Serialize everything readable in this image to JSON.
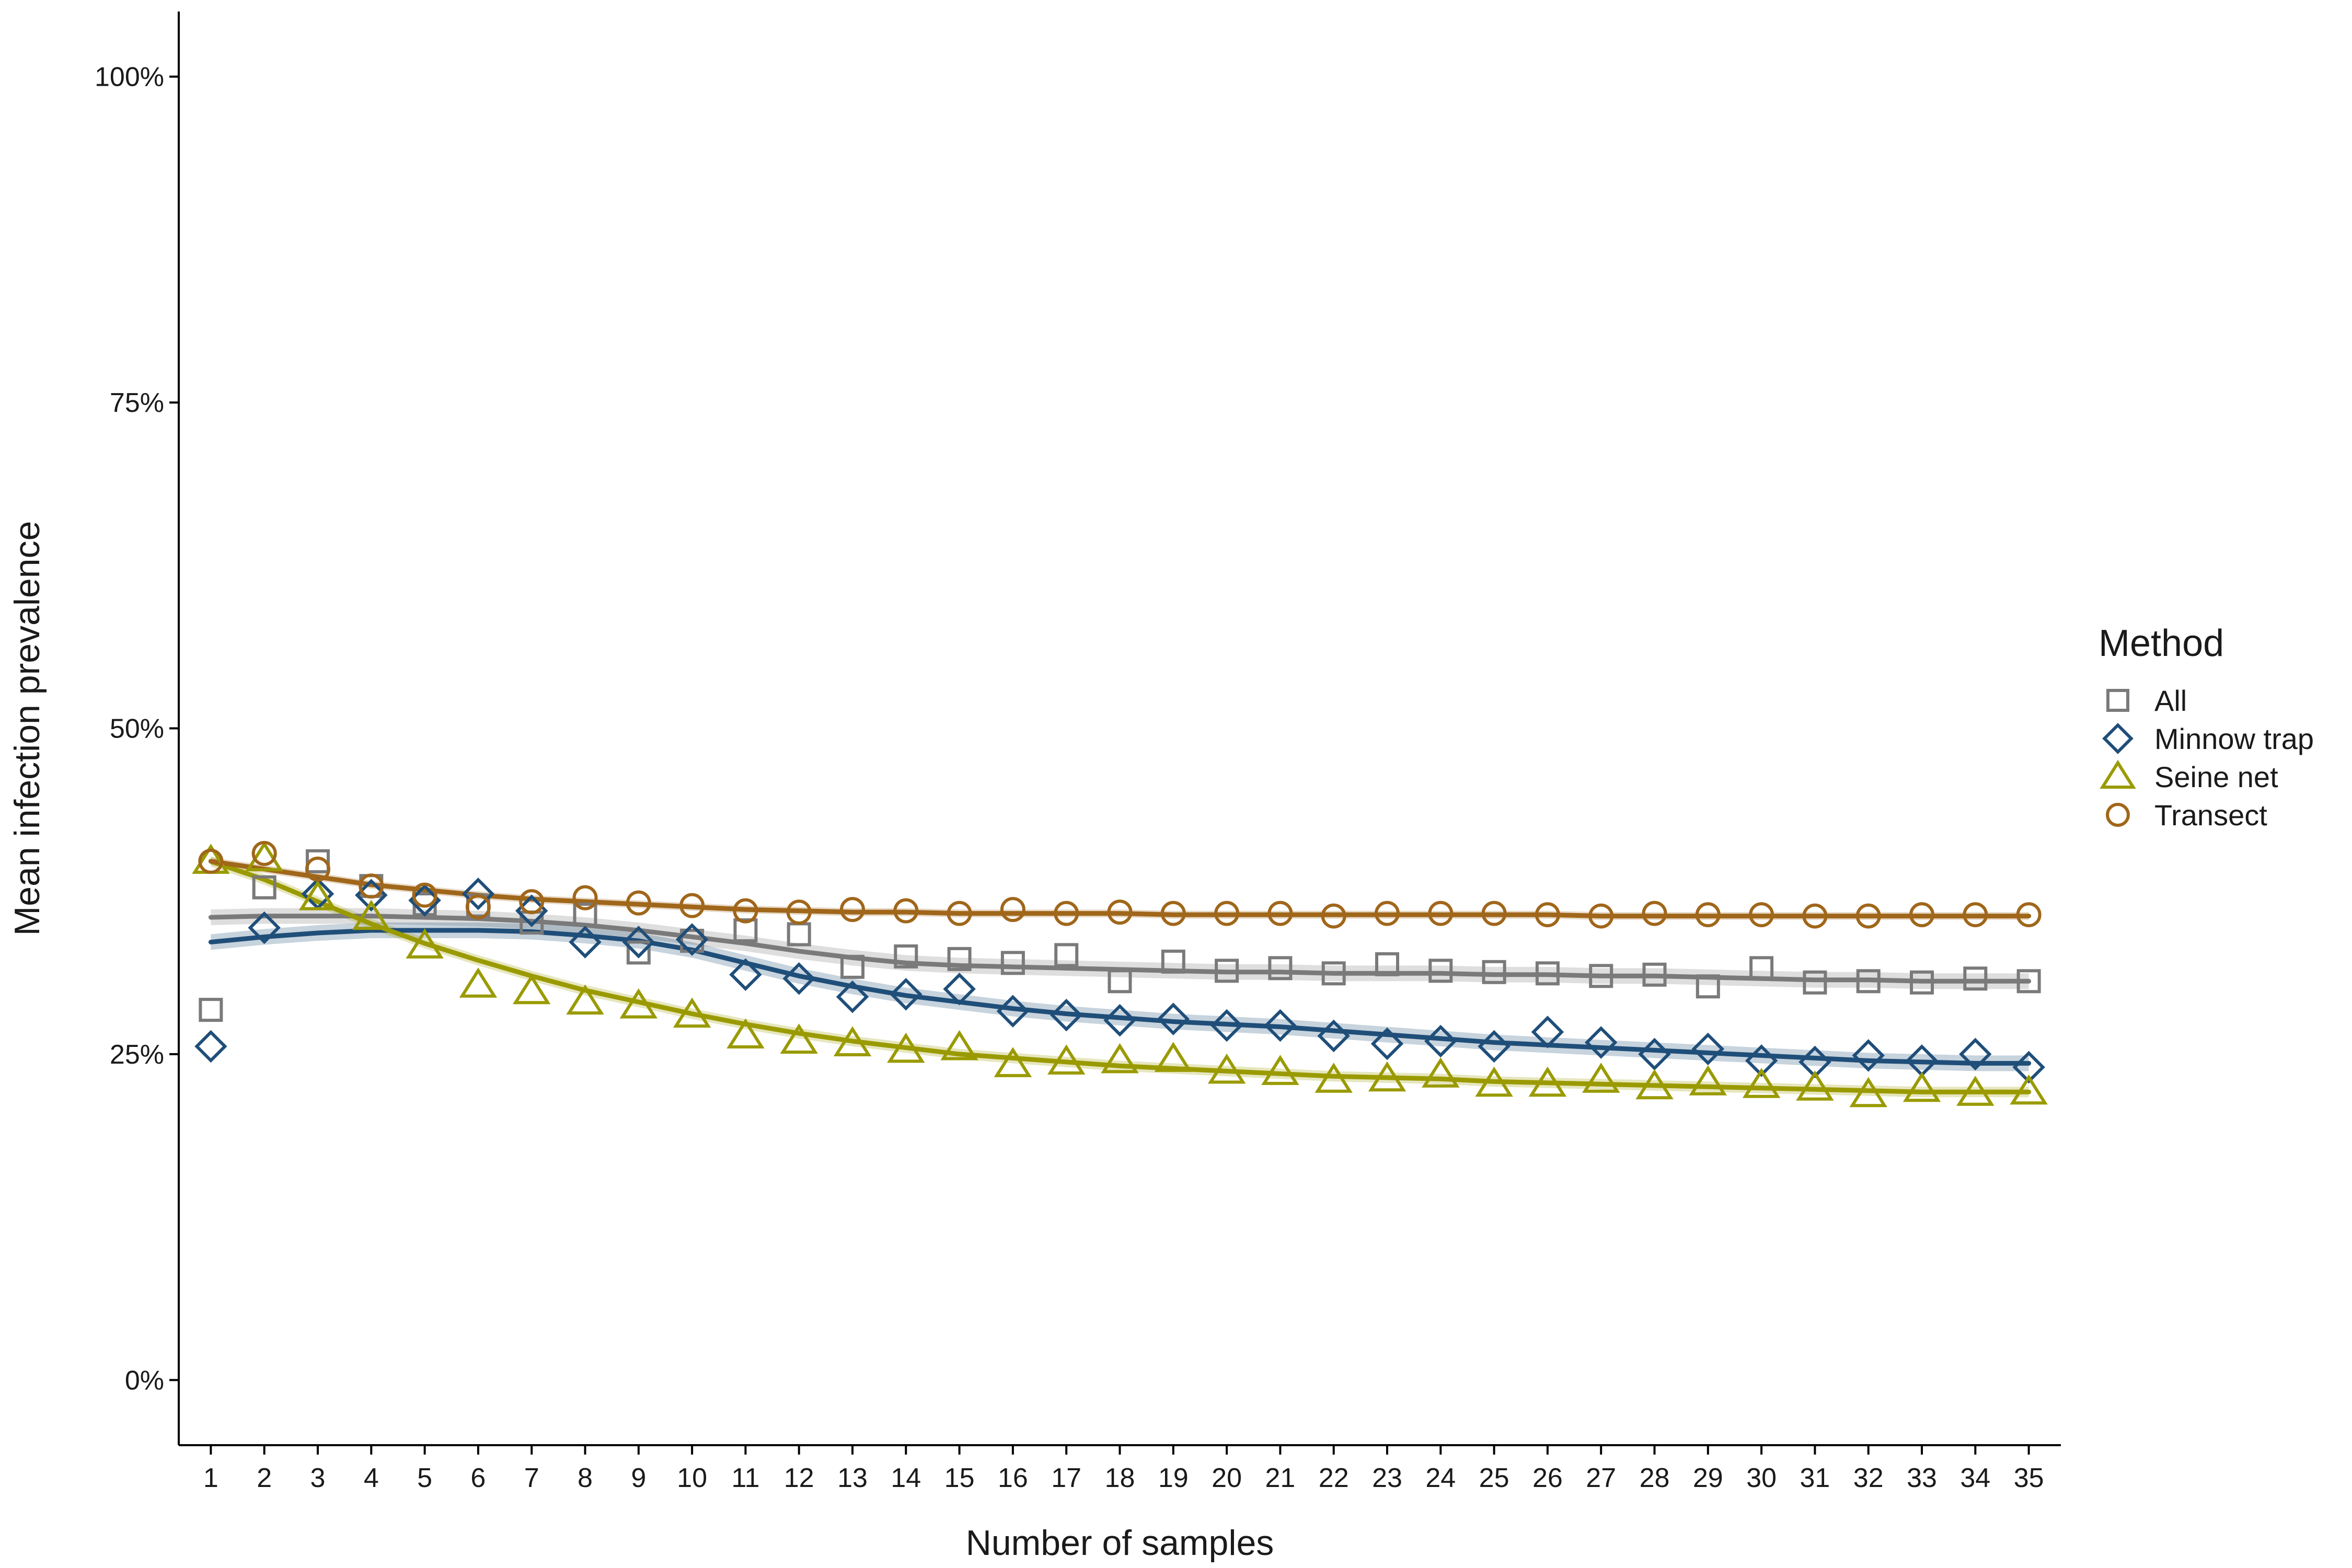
{
  "chart_data": {
    "type": "scatter",
    "title": "",
    "xlabel": "Number of samples",
    "ylabel": "Mean infection prevalence",
    "xlim": [
      0.4,
      35.6
    ],
    "ylim": [
      -0.05,
      1.05
    ],
    "x_ticks": [
      1,
      2,
      3,
      4,
      5,
      6,
      7,
      8,
      9,
      10,
      11,
      12,
      13,
      14,
      15,
      16,
      17,
      18,
      19,
      20,
      21,
      22,
      23,
      24,
      25,
      26,
      27,
      28,
      29,
      30,
      31,
      32,
      33,
      34,
      35
    ],
    "y_ticks": [
      0,
      0.25,
      0.5,
      0.75,
      1.0
    ],
    "y_tick_labels": [
      "0%",
      "25%",
      "50%",
      "75%",
      "100%"
    ],
    "grid": false,
    "legend": {
      "title": "Method",
      "position": "right"
    },
    "series": [
      {
        "name": "All",
        "marker": "square",
        "color": "#7a7a7a",
        "points": [
          0.284,
          0.378,
          0.398,
          0.379,
          0.365,
          0.364,
          0.351,
          0.357,
          0.328,
          0.337,
          0.345,
          0.342,
          0.317,
          0.325,
          0.323,
          0.32,
          0.326,
          0.306,
          0.321,
          0.314,
          0.316,
          0.312,
          0.319,
          0.314,
          0.313,
          0.312,
          0.31,
          0.311,
          0.302,
          0.316,
          0.305,
          0.306,
          0.305,
          0.308,
          0.306
        ],
        "trend": [
          0.355,
          0.356,
          0.356,
          0.356,
          0.355,
          0.354,
          0.352,
          0.349,
          0.345,
          0.34,
          0.335,
          0.329,
          0.324,
          0.32,
          0.318,
          0.317,
          0.316,
          0.315,
          0.314,
          0.313,
          0.313,
          0.312,
          0.312,
          0.312,
          0.311,
          0.311,
          0.31,
          0.31,
          0.309,
          0.308,
          0.307,
          0.307,
          0.306,
          0.306,
          0.306
        ]
      },
      {
        "name": "Minnow trap",
        "marker": "diamond",
        "color": "#1f4e79",
        "points": [
          0.256,
          0.347,
          0.373,
          0.372,
          0.368,
          0.373,
          0.36,
          0.336,
          0.336,
          0.338,
          0.311,
          0.308,
          0.294,
          0.296,
          0.3,
          0.283,
          0.28,
          0.276,
          0.277,
          0.272,
          0.272,
          0.264,
          0.258,
          0.26,
          0.256,
          0.267,
          0.259,
          0.25,
          0.254,
          0.245,
          0.244,
          0.249,
          0.245,
          0.25,
          0.24
        ],
        "trend": [
          0.336,
          0.34,
          0.343,
          0.345,
          0.345,
          0.345,
          0.344,
          0.341,
          0.337,
          0.33,
          0.32,
          0.31,
          0.302,
          0.295,
          0.29,
          0.285,
          0.281,
          0.278,
          0.275,
          0.273,
          0.271,
          0.268,
          0.265,
          0.262,
          0.259,
          0.257,
          0.255,
          0.253,
          0.251,
          0.249,
          0.247,
          0.245,
          0.244,
          0.243,
          0.243
        ]
      },
      {
        "name": "Seine net",
        "marker": "triangle",
        "color": "#9a9a00",
        "points": [
          0.398,
          0.4,
          0.37,
          0.355,
          0.333,
          0.303,
          0.298,
          0.29,
          0.287,
          0.28,
          0.264,
          0.26,
          0.258,
          0.253,
          0.255,
          0.242,
          0.244,
          0.245,
          0.246,
          0.237,
          0.236,
          0.23,
          0.231,
          0.234,
          0.227,
          0.227,
          0.23,
          0.225,
          0.228,
          0.226,
          0.224,
          0.219,
          0.223,
          0.22,
          0.221
        ],
        "trend": [
          0.398,
          0.384,
          0.367,
          0.35,
          0.335,
          0.322,
          0.31,
          0.299,
          0.29,
          0.281,
          0.273,
          0.266,
          0.26,
          0.255,
          0.25,
          0.247,
          0.244,
          0.241,
          0.239,
          0.237,
          0.235,
          0.233,
          0.232,
          0.231,
          0.229,
          0.228,
          0.227,
          0.226,
          0.225,
          0.224,
          0.223,
          0.222,
          0.221,
          0.221,
          0.221
        ]
      },
      {
        "name": "Transect",
        "marker": "circle",
        "color": "#a0661a",
        "points": [
          0.398,
          0.404,
          0.392,
          0.379,
          0.372,
          0.363,
          0.367,
          0.37,
          0.366,
          0.364,
          0.36,
          0.359,
          0.361,
          0.36,
          0.358,
          0.361,
          0.358,
          0.359,
          0.358,
          0.358,
          0.358,
          0.356,
          0.358,
          0.358,
          0.358,
          0.357,
          0.356,
          0.358,
          0.357,
          0.357,
          0.356,
          0.356,
          0.357,
          0.357,
          0.357
        ],
        "trend": [
          0.398,
          0.392,
          0.386,
          0.38,
          0.376,
          0.372,
          0.369,
          0.367,
          0.365,
          0.363,
          0.361,
          0.36,
          0.359,
          0.359,
          0.358,
          0.358,
          0.358,
          0.358,
          0.357,
          0.357,
          0.357,
          0.357,
          0.357,
          0.357,
          0.357,
          0.357,
          0.356,
          0.356,
          0.356,
          0.356,
          0.356,
          0.356,
          0.356,
          0.356,
          0.356
        ]
      }
    ]
  }
}
